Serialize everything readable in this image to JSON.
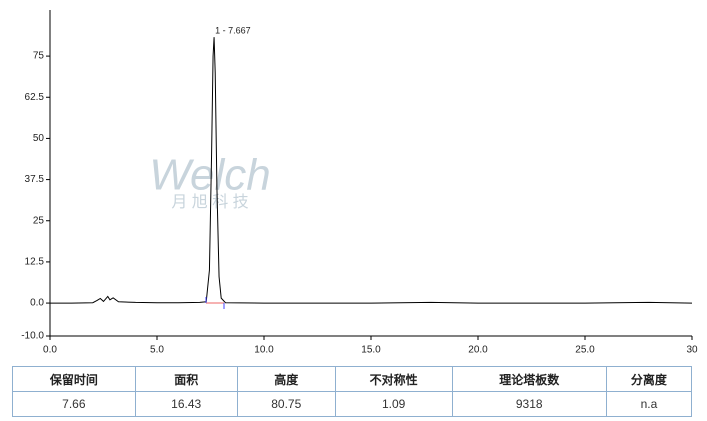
{
  "chart_data": {
    "type": "line",
    "x": [
      0,
      1,
      2,
      2.2,
      2.35,
      2.5,
      2.7,
      2.8,
      2.95,
      3.2,
      4,
      5,
      6,
      7,
      7.3,
      7.45,
      7.55,
      7.62,
      7.667,
      7.72,
      7.8,
      7.9,
      8.0,
      8.2,
      10,
      15,
      17.8,
      20,
      25,
      28,
      30
    ],
    "series": [
      {
        "color": "#000000",
        "values": [
          0,
          0,
          0.1,
          0.8,
          1.4,
          0.5,
          2.0,
          1.0,
          1.6,
          0.4,
          0.2,
          0.1,
          0.1,
          0.2,
          0.4,
          10,
          45,
          75,
          80.75,
          70,
          35,
          8,
          1.5,
          0.1,
          0,
          0,
          0.2,
          0,
          0,
          0.2,
          0
        ]
      }
    ],
    "annotation": "1 - 7.667",
    "watermark": "Welch",
    "watermark_sub": "月 旭 科 技",
    "xlim": [
      0,
      30
    ],
    "ylim": [
      -10,
      89
    ],
    "xticks": [
      {
        "value": 0,
        "label": "0.0"
      },
      {
        "value": 5,
        "label": "5.0"
      },
      {
        "value": 10,
        "label": "10.0"
      },
      {
        "value": 15,
        "label": "15.0"
      },
      {
        "value": 20,
        "label": "20.0"
      },
      {
        "value": 25,
        "label": "25.0"
      },
      {
        "value": 30,
        "label": "30"
      }
    ],
    "yticks": [
      {
        "value": -10,
        "label": "-10.0"
      },
      {
        "value": 0,
        "label": "0.0"
      },
      12.5,
      25,
      37.5,
      50,
      62.5,
      75
    ]
  },
  "table": {
    "columns": [
      "保留时间",
      "面积",
      "高度",
      "不对称性",
      "理论塔板数",
      "分离度"
    ],
    "rows": [
      [
        "7.66",
        "16.43",
        "80.75",
        "1.09",
        "9318",
        "n.a"
      ]
    ]
  }
}
